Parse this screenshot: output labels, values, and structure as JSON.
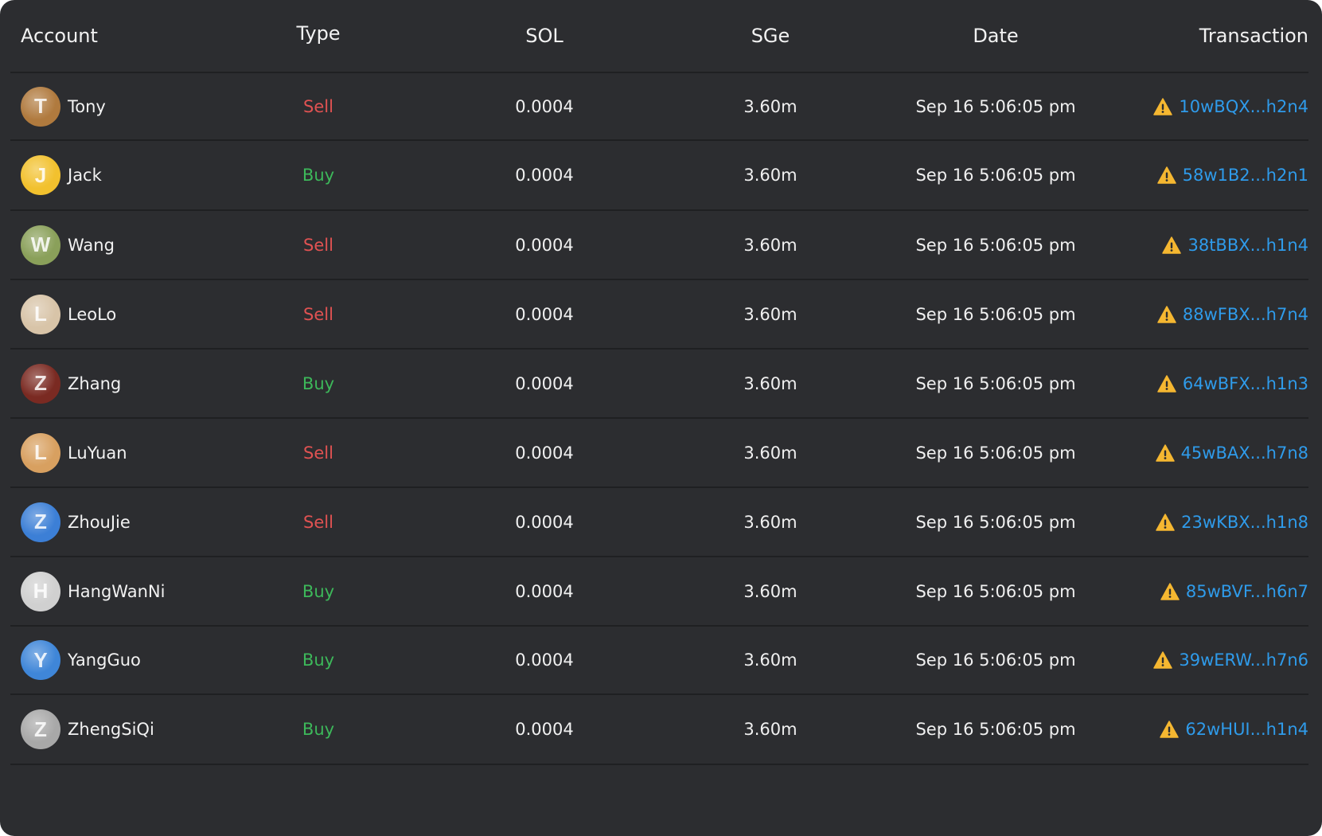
{
  "table": {
    "headers": {
      "account": "Account",
      "type": "Type",
      "sol": "SOL",
      "sge": "SGe",
      "date": "Date",
      "transaction": "Transaction"
    },
    "rows": [
      {
        "name": "Tony",
        "avatar_icon": "shiba-dog-avatar",
        "avatar_color": "#b07a3e",
        "type": "Sell",
        "sol": "0.0004",
        "sge": "3.60m",
        "date": "Sep 16 5:06:05 pm",
        "tx": "10wBQX...h2n4"
      },
      {
        "name": "Jack",
        "avatar_icon": "duck-sunglasses-avatar",
        "avatar_color": "#f2c12e",
        "type": "Buy",
        "sol": "0.0004",
        "sge": "3.60m",
        "date": "Sep 16 5:06:05 pm",
        "tx": "58w1B2...h2n1"
      },
      {
        "name": "Wang",
        "avatar_icon": "white-dog-avatar",
        "avatar_color": "#8aa05a",
        "type": "Sell",
        "sol": "0.0004",
        "sge": "3.60m",
        "date": "Sep 16 5:06:05 pm",
        "tx": "38tBBX...h1n4"
      },
      {
        "name": "LeoLo",
        "avatar_icon": "cat-avatar",
        "avatar_color": "#d8c4a8",
        "type": "Sell",
        "sol": "0.0004",
        "sge": "3.60m",
        "date": "Sep 16 5:06:05 pm",
        "tx": "88wFBX...h7n4"
      },
      {
        "name": "Zhang",
        "avatar_icon": "person-avatar",
        "avatar_color": "#7a2a22",
        "type": "Buy",
        "sol": "0.0004",
        "sge": "3.60m",
        "date": "Sep 16 5:06:05 pm",
        "tx": "64wBFX...h1n3"
      },
      {
        "name": "LuYuan",
        "avatar_icon": "shiba-dog-avatar",
        "avatar_color": "#d8a060",
        "type": "Sell",
        "sol": "0.0004",
        "sge": "3.60m",
        "date": "Sep 16 5:06:05 pm",
        "tx": "45wBAX...h7n8"
      },
      {
        "name": "ZhouJie",
        "avatar_icon": "cartoon-duck-avatar",
        "avatar_color": "#3c7fd6",
        "type": "Sell",
        "sol": "0.0004",
        "sge": "3.60m",
        "date": "Sep 16 5:06:05 pm",
        "tx": "23wKBX...h1n8"
      },
      {
        "name": "HangWanNi",
        "avatar_icon": "cats-group-avatar",
        "avatar_color": "#d0d0d0",
        "type": "Buy",
        "sol": "0.0004",
        "sge": "3.60m",
        "date": "Sep 16 5:06:05 pm",
        "tx": "85wBVF...h6n7"
      },
      {
        "name": "YangGuo",
        "avatar_icon": "dog-blue-bg-avatar",
        "avatar_color": "#3f86d8",
        "type": "Buy",
        "sol": "0.0004",
        "sge": "3.60m",
        "date": "Sep 16 5:06:05 pm",
        "tx": "39wERW...h7n6"
      },
      {
        "name": "ZhengSiQi",
        "avatar_icon": "white-duck-avatar",
        "avatar_color": "#a8a8a8",
        "type": "Buy",
        "sol": "0.0004",
        "sge": "3.60m",
        "date": "Sep 16 5:06:05 pm",
        "tx": "62wHUI...h1n4"
      }
    ]
  },
  "colors": {
    "background": "#2c2d30",
    "divider": "#1f2022",
    "sell": "#e05252",
    "buy": "#3db85a",
    "link": "#2f9bea",
    "warning": "#f5b731"
  },
  "icons": {
    "transaction_status": "warning-triangle-icon"
  }
}
